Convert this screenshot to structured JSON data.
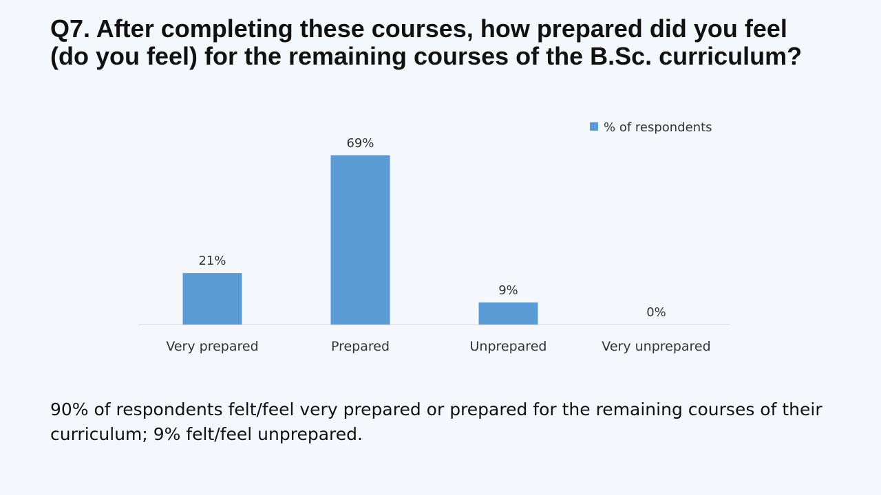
{
  "slide": {
    "title": "Q7. After completing these courses, how prepared did you feel (do you feel) for the remaining courses of the B.Sc. curriculum?",
    "summary": "90% of respondents felt/feel very prepared or prepared for the remaining courses of their curriculum; 9% felt/feel unprepared."
  },
  "chart_data": {
    "type": "bar",
    "categories": [
      "Very prepared",
      "Prepared",
      "Unprepared",
      "Very unprepared"
    ],
    "series": [
      {
        "name": "% of respondents",
        "values": [
          21,
          69,
          9,
          0
        ],
        "labels": [
          "21%",
          "69%",
          "9%",
          "0%"
        ],
        "color": "#5b9bd5"
      }
    ],
    "title": "",
    "xlabel": "",
    "ylabel": "",
    "ylim": [
      0,
      69
    ],
    "grid": false,
    "legend_position": "top-right"
  }
}
